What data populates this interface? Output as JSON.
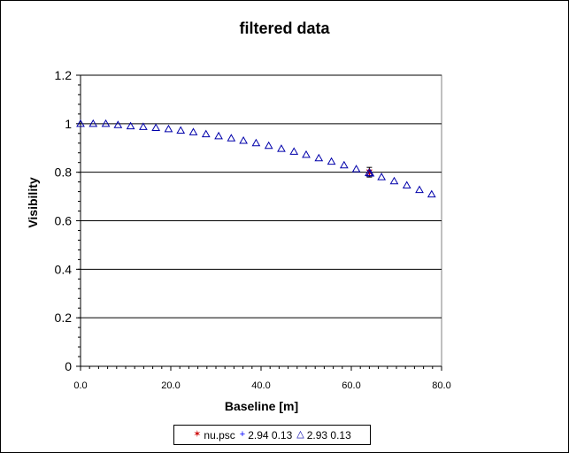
{
  "chart_data": {
    "type": "scatter",
    "title": "filtered data",
    "xlabel": "Baseline [m]",
    "ylabel": "Visibility",
    "xlim": [
      0,
      80
    ],
    "ylim": [
      0,
      1.2
    ],
    "x_ticks": [
      0,
      20,
      40,
      60,
      80
    ],
    "x_tick_labels": [
      "0.0",
      "20.0",
      "40.0",
      "60.0",
      "80.0"
    ],
    "y_ticks": [
      0,
      0.2,
      0.4,
      0.6,
      0.8,
      1,
      1.2
    ],
    "y_tick_labels": [
      "0",
      "0.2",
      "0.4",
      "0.6",
      "0.8",
      "1",
      "1.2"
    ],
    "grid": "horizontal",
    "legend_position": "bottom",
    "series": [
      {
        "name": "nu.psc",
        "marker": "star",
        "color": "#cc0000",
        "points": [
          {
            "x": 64,
            "y": 0.8,
            "err": 0.02
          }
        ]
      },
      {
        "name": "2.94 0.13",
        "marker": "plus",
        "color": "#0000ff",
        "points": []
      },
      {
        "name": "2.93 0.13",
        "marker": "triangle",
        "color": "#0000aa",
        "points": [
          {
            "x": 0.0,
            "y": 1.0
          },
          {
            "x": 2.8,
            "y": 1.0
          },
          {
            "x": 5.6,
            "y": 1.0
          },
          {
            "x": 8.3,
            "y": 0.995
          },
          {
            "x": 11.1,
            "y": 0.99
          },
          {
            "x": 13.9,
            "y": 0.987
          },
          {
            "x": 16.7,
            "y": 0.983
          },
          {
            "x": 19.5,
            "y": 0.978
          },
          {
            "x": 22.2,
            "y": 0.972
          },
          {
            "x": 25.0,
            "y": 0.965
          },
          {
            "x": 27.8,
            "y": 0.957
          },
          {
            "x": 30.6,
            "y": 0.949
          },
          {
            "x": 33.4,
            "y": 0.94
          },
          {
            "x": 36.1,
            "y": 0.93
          },
          {
            "x": 38.9,
            "y": 0.92
          },
          {
            "x": 41.7,
            "y": 0.909
          },
          {
            "x": 44.5,
            "y": 0.897
          },
          {
            "x": 47.3,
            "y": 0.885
          },
          {
            "x": 50.0,
            "y": 0.872
          },
          {
            "x": 52.8,
            "y": 0.858
          },
          {
            "x": 55.6,
            "y": 0.844
          },
          {
            "x": 58.4,
            "y": 0.829
          },
          {
            "x": 61.1,
            "y": 0.813
          },
          {
            "x": 63.9,
            "y": 0.797
          },
          {
            "x": 64.2,
            "y": 0.795
          },
          {
            "x": 66.7,
            "y": 0.78
          },
          {
            "x": 69.5,
            "y": 0.763
          },
          {
            "x": 72.3,
            "y": 0.746
          },
          {
            "x": 75.1,
            "y": 0.727
          },
          {
            "x": 77.8,
            "y": 0.709
          }
        ]
      }
    ]
  }
}
